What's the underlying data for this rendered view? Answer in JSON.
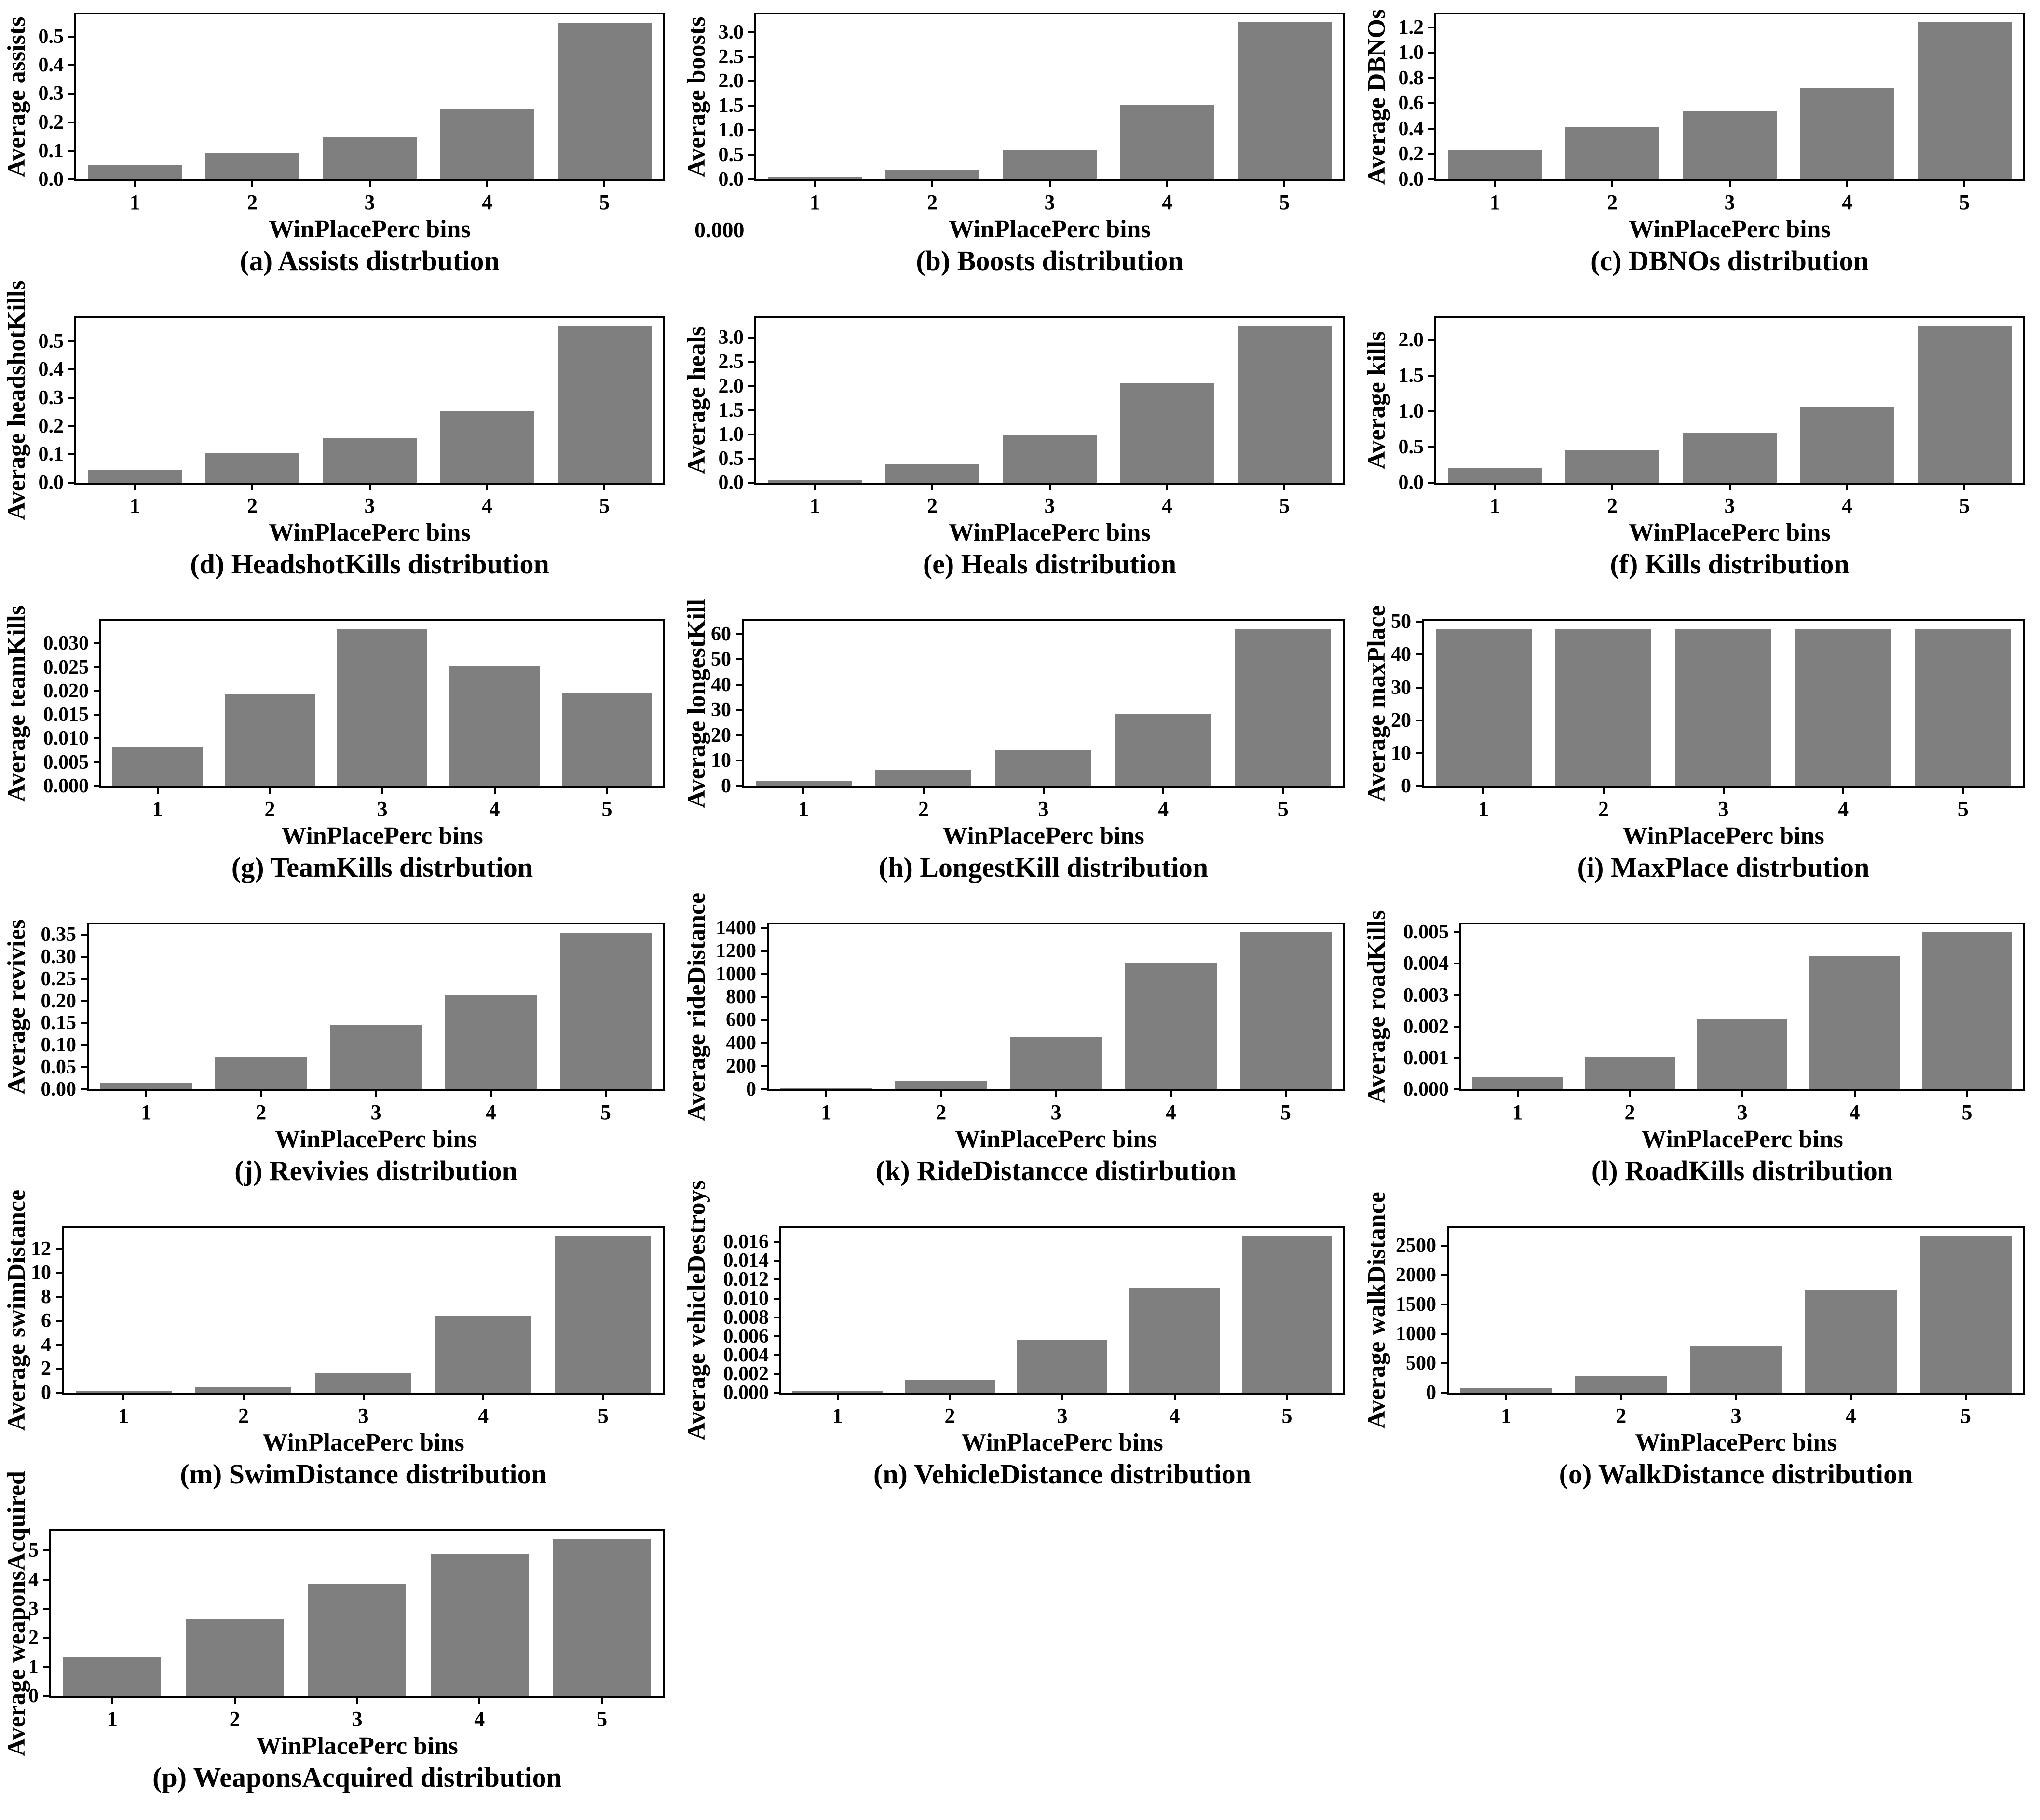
{
  "figure": {
    "background": "#ffffff",
    "text_color": "#000000",
    "bar_color": "#7f7f7f",
    "xlabel": "WinPlacePerc bins",
    "bin_labels": [
      "1",
      "2",
      "3",
      "4",
      "5"
    ]
  },
  "chart_data": [
    {
      "type": "bar",
      "letter": "a",
      "name": "assists",
      "title": "(a) Assists distrbution",
      "ylabel": "Average assists",
      "xlabel": "WinPlacePerc bins",
      "categories": [
        "1",
        "2",
        "3",
        "4",
        "5"
      ],
      "values": [
        0.05,
        0.092,
        0.148,
        0.248,
        0.55
      ],
      "yticks": [
        "0.0",
        "0.1",
        "0.2",
        "0.3",
        "0.4",
        "0.5"
      ],
      "ylim": [
        0,
        0.578
      ]
    },
    {
      "type": "bar",
      "letter": "b",
      "name": "boosts",
      "title": "(b) Boosts distribution",
      "ylabel": "Average boosts",
      "xlabel": "WinPlacePerc bins",
      "categories": [
        "1",
        "2",
        "3",
        "4",
        "5"
      ],
      "values": [
        0.04,
        0.2,
        0.6,
        1.51,
        3.2
      ],
      "yticks": [
        "0.0",
        "0.5",
        "1.0",
        "1.5",
        "2.0",
        "2.5",
        "3.0"
      ],
      "ylim": [
        0,
        3.36
      ],
      "stray_label": "0.000"
    },
    {
      "type": "bar",
      "letter": "c",
      "name": "dbnos",
      "title": "(c) DBNOs distribution",
      "ylabel": "Average DBNOs",
      "xlabel": "WinPlacePerc bins",
      "categories": [
        "1",
        "2",
        "3",
        "4",
        "5"
      ],
      "values": [
        0.23,
        0.41,
        0.54,
        0.72,
        1.24
      ],
      "yticks": [
        "0.0",
        "0.2",
        "0.4",
        "0.6",
        "0.8",
        "1.0",
        "1.2"
      ],
      "ylim": [
        0,
        1.302
      ]
    },
    {
      "type": "bar",
      "letter": "d",
      "name": "headshotkills",
      "title": "(d) HeadshotKills distribution",
      "ylabel": "Average headshotKills",
      "xlabel": "WinPlacePerc bins",
      "categories": [
        "1",
        "2",
        "3",
        "4",
        "5"
      ],
      "values": [
        0.046,
        0.106,
        0.159,
        0.252,
        0.555
      ],
      "yticks": [
        "0.0",
        "0.1",
        "0.2",
        "0.3",
        "0.4",
        "0.5"
      ],
      "ylim": [
        0,
        0.583
      ]
    },
    {
      "type": "bar",
      "letter": "e",
      "name": "heals",
      "title": "(e) Heals distribution",
      "ylabel": "Average heals",
      "xlabel": "WinPlacePerc bins",
      "categories": [
        "1",
        "2",
        "3",
        "4",
        "5"
      ],
      "values": [
        0.05,
        0.38,
        1.0,
        2.06,
        3.25
      ],
      "yticks": [
        "0.0",
        "0.5",
        "1.0",
        "1.5",
        "2.0",
        "2.5",
        "3.0"
      ],
      "ylim": [
        0,
        3.413
      ]
    },
    {
      "type": "bar",
      "letter": "f",
      "name": "kills",
      "title": "(f) Kills distribution",
      "ylabel": "Average kills",
      "xlabel": "WinPlacePerc bins",
      "categories": [
        "1",
        "2",
        "3",
        "4",
        "5"
      ],
      "values": [
        0.2,
        0.46,
        0.7,
        1.06,
        2.2
      ],
      "yticks": [
        "0.0",
        "0.5",
        "1.0",
        "1.5",
        "2.0"
      ],
      "ylim": [
        0,
        2.31
      ]
    },
    {
      "type": "bar",
      "letter": "g",
      "name": "teamkills",
      "title": "(g) TeamKills distrbution",
      "ylabel": "Average teamKills",
      "xlabel": "WinPlacePerc bins",
      "categories": [
        "1",
        "2",
        "3",
        "4",
        "5"
      ],
      "values": [
        0.0082,
        0.0193,
        0.033,
        0.0254,
        0.0195
      ],
      "yticks": [
        "0.000",
        "0.005",
        "0.010",
        "0.015",
        "0.020",
        "0.025",
        "0.030"
      ],
      "ylim": [
        0,
        0.0347
      ]
    },
    {
      "type": "bar",
      "letter": "h",
      "name": "longestkill",
      "title": "(h) LongestKill distribution",
      "ylabel": "Average longestKill",
      "xlabel": "WinPlacePerc bins",
      "categories": [
        "1",
        "2",
        "3",
        "4",
        "5"
      ],
      "values": [
        2,
        6.3,
        14,
        28.5,
        62
      ],
      "yticks": [
        "0",
        "10",
        "20",
        "30",
        "40",
        "50",
        "60"
      ],
      "ylim": [
        0,
        65.1
      ]
    },
    {
      "type": "bar",
      "letter": "i",
      "name": "maxplace",
      "title": "(i) MaxPlace distrbution",
      "ylabel": "Average maxPlace",
      "xlabel": "WinPlacePerc bins",
      "categories": [
        "1",
        "2",
        "3",
        "4",
        "5"
      ],
      "values": [
        47.8,
        47.9,
        47.9,
        47.7,
        47.8
      ],
      "yticks": [
        "0",
        "10",
        "20",
        "30",
        "40",
        "50"
      ],
      "ylim": [
        0,
        50.2
      ]
    },
    {
      "type": "bar",
      "letter": "j",
      "name": "revivies",
      "title": "(j) Revivies distribution",
      "ylabel": "Average revivies",
      "xlabel": "WinPlacePerc bins",
      "categories": [
        "1",
        "2",
        "3",
        "4",
        "5"
      ],
      "values": [
        0.015,
        0.073,
        0.145,
        0.213,
        0.355
      ],
      "yticks": [
        "0.00",
        "0.05",
        "0.10",
        "0.15",
        "0.20",
        "0.25",
        "0.30",
        "0.35"
      ],
      "ylim": [
        0,
        0.373
      ]
    },
    {
      "type": "bar",
      "letter": "k",
      "name": "ridedistance",
      "title": "(k) RideDistancce distirbution",
      "ylabel": "Average rideDistance",
      "xlabel": "WinPlacePerc bins",
      "categories": [
        "1",
        "2",
        "3",
        "4",
        "5"
      ],
      "values": [
        8,
        70,
        455,
        1100,
        1360
      ],
      "yticks": [
        "0",
        "200",
        "400",
        "600",
        "800",
        "1000",
        "1200",
        "1400"
      ],
      "ylim": [
        0,
        1428
      ]
    },
    {
      "type": "bar",
      "letter": "l",
      "name": "roadkills",
      "title": "(l) RoadKills distribution",
      "ylabel": "Average roadKills",
      "xlabel": "WinPlacePerc bins",
      "categories": [
        "1",
        "2",
        "3",
        "4",
        "5"
      ],
      "values": [
        0.0004,
        0.00105,
        0.00225,
        0.00425,
        0.005
      ],
      "yticks": [
        "0.000",
        "0.001",
        "0.002",
        "0.003",
        "0.004",
        "0.005"
      ],
      "ylim": [
        0,
        0.00525
      ]
    },
    {
      "type": "bar",
      "letter": "m",
      "name": "swimdistance",
      "title": "(m) SwimDistance distribution",
      "ylabel": "Average swimDistance",
      "xlabel": "WinPlacePerc bins",
      "categories": [
        "1",
        "2",
        "3",
        "4",
        "5"
      ],
      "values": [
        0.15,
        0.5,
        1.6,
        6.4,
        13.1
      ],
      "yticks": [
        "0",
        "2",
        "4",
        "6",
        "8",
        "10",
        "12"
      ],
      "ylim": [
        0,
        13.76
      ]
    },
    {
      "type": "bar",
      "letter": "n",
      "name": "vehicledestroys",
      "title": "(n) VehicleDistance distribution",
      "ylabel": "Average vehicleDestroys",
      "xlabel": "WinPlacePerc bins",
      "categories": [
        "1",
        "2",
        "3",
        "4",
        "5"
      ],
      "values": [
        0.0002,
        0.0014,
        0.0056,
        0.0111,
        0.0167
      ],
      "yticks": [
        "0.000",
        "0.002",
        "0.004",
        "0.006",
        "0.008",
        "0.010",
        "0.012",
        "0.014",
        "0.016"
      ],
      "ylim": [
        0,
        0.0175
      ]
    },
    {
      "type": "bar",
      "letter": "o",
      "name": "walkdistance",
      "title": "(o) WalkDistance distribution",
      "ylabel": "Average walkDistance",
      "xlabel": "WinPlacePerc bins",
      "categories": [
        "1",
        "2",
        "3",
        "4",
        "5"
      ],
      "values": [
        75,
        280,
        790,
        1750,
        2670
      ],
      "yticks": [
        "0",
        "500",
        "1000",
        "1500",
        "2000",
        "2500"
      ],
      "ylim": [
        0,
        2800
      ]
    },
    {
      "type": "bar",
      "letter": "p",
      "name": "weaponsacquired",
      "title": "(p) WeaponsAcquired distribution",
      "ylabel": "Average weaponsAcquired",
      "xlabel": "WinPlacePerc bins",
      "categories": [
        "1",
        "2",
        "3",
        "4",
        "5"
      ],
      "values": [
        1.32,
        2.65,
        3.85,
        4.88,
        5.4
      ],
      "yticks": [
        "0",
        "1",
        "2",
        "3",
        "4",
        "5"
      ],
      "ylim": [
        0,
        5.67
      ]
    }
  ]
}
